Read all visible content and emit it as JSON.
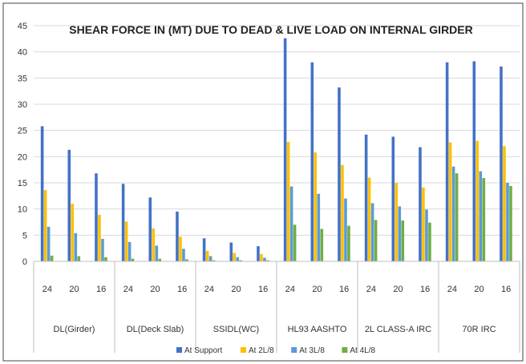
{
  "chart_data": {
    "type": "bar",
    "title": "SHEAR FORCE IN (MT) DUE TO DEAD & LIVE LOAD ON INTERNAL  GIRDER",
    "xlabel": "",
    "ylabel": "",
    "ylim": [
      0,
      45
    ],
    "yticks": [
      0,
      5,
      10,
      15,
      20,
      25,
      30,
      35,
      40,
      45
    ],
    "grid": true,
    "legend_position": "bottom",
    "groups": [
      "DL(Girder)",
      "DL(Deck Slab)",
      "SSIDL(WC)",
      "HL93 AASHTO",
      "2L CLASS-A IRC",
      "70R IRC"
    ],
    "subcategories": [
      "24",
      "20",
      "16"
    ],
    "categories": [
      "24",
      "20",
      "16",
      "24",
      "20",
      "16",
      "24",
      "20",
      "16",
      "24",
      "20",
      "16",
      "24",
      "20",
      "16",
      "24",
      "20",
      "16"
    ],
    "series": [
      {
        "name": "At Support",
        "color": "#4472c4",
        "values": [
          25.8,
          21.3,
          16.8,
          14.8,
          12.2,
          9.5,
          4.4,
          3.6,
          2.9,
          42.6,
          38.0,
          33.2,
          24.2,
          23.8,
          21.8,
          38.0,
          38.2,
          37.2
        ]
      },
      {
        "name": "At 2L/8",
        "color": "#ffc000",
        "values": [
          13.6,
          11.0,
          8.9,
          7.6,
          6.3,
          4.7,
          2.0,
          1.6,
          1.4,
          22.8,
          20.8,
          18.4,
          16.0,
          15.0,
          14.1,
          22.7,
          23.0,
          22.0
        ]
      },
      {
        "name": "At 3L/8",
        "color": "#5b9bd5",
        "values": [
          6.6,
          5.4,
          4.3,
          3.7,
          3.0,
          2.4,
          1.0,
          0.8,
          0.7,
          14.3,
          12.9,
          12.0,
          11.1,
          10.5,
          9.9,
          18.1,
          17.2,
          15.0
        ]
      },
      {
        "name": "At 4L/8",
        "color": "#70ad47",
        "values": [
          1.1,
          1.0,
          0.8,
          0.5,
          0.5,
          0.4,
          0.2,
          0.2,
          0.2,
          7.0,
          6.2,
          6.8,
          7.9,
          7.8,
          7.4,
          16.8,
          15.9,
          14.4
        ]
      }
    ]
  }
}
